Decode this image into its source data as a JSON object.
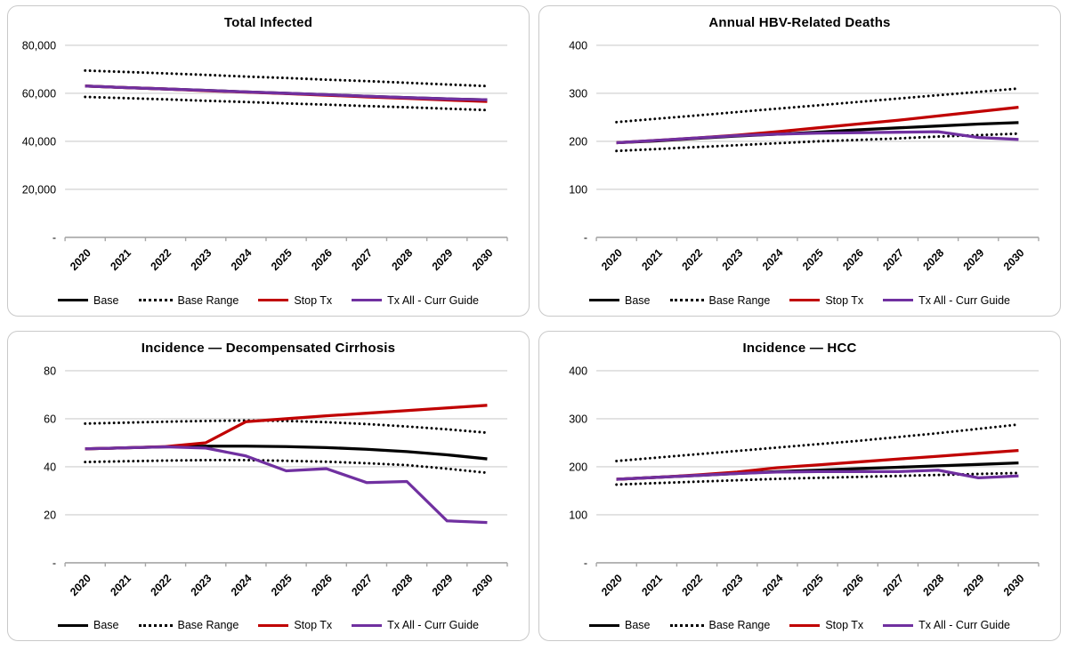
{
  "colors": {
    "base": "#000000",
    "base_range": "#000000",
    "stop_tx": "#C00000",
    "tx_all": "#7030A0",
    "gridline": "#D6D6D6",
    "axis": "#A6A6A6",
    "panel_border": "#C9C9C9",
    "text": "#000000"
  },
  "legend": [
    {
      "label": "Base",
      "style": "solid",
      "color": "#000000"
    },
    {
      "label": "Base Range",
      "style": "dotted",
      "color": "#000000"
    },
    {
      "label": "Stop Tx",
      "style": "solid",
      "color": "#C00000"
    },
    {
      "label": "Tx All - Curr Guide",
      "style": "solid",
      "color": "#7030A0"
    }
  ],
  "chart_data": [
    {
      "type": "line",
      "title": "Total Infected",
      "x": [
        2020,
        2021,
        2022,
        2023,
        2024,
        2025,
        2026,
        2027,
        2028,
        2029,
        2030
      ],
      "ylim": [
        0,
        80000
      ],
      "grid": true,
      "legend_position": "bottom",
      "yticks": [
        {
          "value": 80000,
          "label": "80,000"
        },
        {
          "value": 60000,
          "label": "60,000"
        },
        {
          "value": 40000,
          "label": "40,000"
        },
        {
          "value": 20000,
          "label": "20,000"
        },
        {
          "value": 0,
          "label": "-"
        }
      ],
      "series": [
        {
          "name": "Base",
          "color": "#000000",
          "dash": "solid",
          "values": [
            63000,
            62400,
            61800,
            61200,
            60600,
            60000,
            59400,
            58800,
            58200,
            57700,
            57300
          ]
        },
        {
          "name": "Base Range (upper)",
          "color": "#000000",
          "dash": "dotted",
          "values": [
            69500,
            68900,
            68300,
            67700,
            67000,
            66400,
            65700,
            65100,
            64400,
            63700,
            63000
          ]
        },
        {
          "name": "Base Range (lower)",
          "color": "#000000",
          "dash": "dotted",
          "values": [
            58500,
            58000,
            57500,
            56900,
            56400,
            55800,
            55300,
            54700,
            54200,
            53600,
            53000
          ]
        },
        {
          "name": "Stop Tx",
          "color": "#C00000",
          "dash": "solid",
          "values": [
            63000,
            62400,
            61800,
            61100,
            60500,
            59900,
            59200,
            58500,
            57900,
            57200,
            56600
          ]
        },
        {
          "name": "Tx All - Curr Guide",
          "color": "#7030A0",
          "dash": "solid",
          "values": [
            63000,
            62400,
            61800,
            61200,
            60600,
            60000,
            59400,
            58800,
            58200,
            57700,
            57300
          ]
        }
      ]
    },
    {
      "type": "line",
      "title": "Annual HBV-Related Deaths",
      "x": [
        2020,
        2021,
        2022,
        2023,
        2024,
        2025,
        2026,
        2027,
        2028,
        2029,
        2030
      ],
      "ylim": [
        0,
        400
      ],
      "grid": true,
      "legend_position": "bottom",
      "yticks": [
        {
          "value": 400,
          "label": "400"
        },
        {
          "value": 300,
          "label": "300"
        },
        {
          "value": 200,
          "label": "200"
        },
        {
          "value": 100,
          "label": "100"
        },
        {
          "value": 0,
          "label": "-"
        }
      ],
      "series": [
        {
          "name": "Base",
          "color": "#000000",
          "dash": "solid",
          "values": [
            197,
            201,
            206,
            211,
            215,
            219,
            224,
            228,
            232,
            236,
            239
          ]
        },
        {
          "name": "Base Range (upper)",
          "color": "#000000",
          "dash": "dotted",
          "values": [
            240,
            247,
            254,
            261,
            268,
            275,
            282,
            289,
            296,
            303,
            310
          ]
        },
        {
          "name": "Base Range (lower)",
          "color": "#000000",
          "dash": "dotted",
          "values": [
            180,
            184,
            188,
            192,
            196,
            200,
            203,
            206,
            210,
            213,
            216
          ]
        },
        {
          "name": "Stop Tx",
          "color": "#C00000",
          "dash": "solid",
          "values": [
            197,
            202,
            207,
            213,
            220,
            228,
            236,
            244,
            253,
            262,
            271
          ]
        },
        {
          "name": "Tx All - Curr Guide",
          "color": "#7030A0",
          "dash": "solid",
          "values": [
            197,
            202,
            207,
            212,
            215,
            217,
            218,
            219,
            220,
            208,
            204
          ]
        }
      ]
    },
    {
      "type": "line",
      "title": "Incidence — Decompensated Cirrhosis",
      "x": [
        2020,
        2021,
        2022,
        2023,
        2024,
        2025,
        2026,
        2027,
        2028,
        2029,
        2030
      ],
      "ylim": [
        0,
        80
      ],
      "grid": true,
      "legend_position": "bottom",
      "yticks": [
        {
          "value": 80,
          "label": "80"
        },
        {
          "value": 60,
          "label": "60"
        },
        {
          "value": 40,
          "label": "40"
        },
        {
          "value": 20,
          "label": "20"
        },
        {
          "value": 0,
          "label": "-"
        }
      ],
      "series": [
        {
          "name": "Base",
          "color": "#000000",
          "dash": "solid",
          "values": [
            47.5,
            47.9,
            48.3,
            48.6,
            48.6,
            48.4,
            48.0,
            47.3,
            46.3,
            45.0,
            43.3
          ]
        },
        {
          "name": "Base Range (upper)",
          "color": "#000000",
          "dash": "dotted",
          "values": [
            58.0,
            58.4,
            58.8,
            59.1,
            59.3,
            59.1,
            58.6,
            57.8,
            56.8,
            55.6,
            54.2
          ]
        },
        {
          "name": "Base Range (lower)",
          "color": "#000000",
          "dash": "dotted",
          "values": [
            42.0,
            42.3,
            42.6,
            42.8,
            42.8,
            42.5,
            42.1,
            41.5,
            40.7,
            39.2,
            37.5
          ]
        },
        {
          "name": "Stop Tx",
          "color": "#C00000",
          "dash": "solid",
          "values": [
            47.5,
            47.9,
            48.4,
            50.0,
            58.8,
            60.0,
            61.2,
            62.3,
            63.4,
            64.5,
            65.6
          ]
        },
        {
          "name": "Tx All - Curr Guide",
          "color": "#7030A0",
          "dash": "solid",
          "values": [
            47.5,
            47.9,
            48.3,
            47.8,
            44.5,
            38.3,
            39.2,
            33.4,
            33.9,
            17.5,
            16.8
          ]
        }
      ]
    },
    {
      "type": "line",
      "title": "Incidence — HCC",
      "x": [
        2020,
        2021,
        2022,
        2023,
        2024,
        2025,
        2026,
        2027,
        2028,
        2029,
        2030
      ],
      "ylim": [
        0,
        400
      ],
      "grid": true,
      "legend_position": "bottom",
      "yticks": [
        {
          "value": 400,
          "label": "400"
        },
        {
          "value": 300,
          "label": "300"
        },
        {
          "value": 200,
          "label": "200"
        },
        {
          "value": 100,
          "label": "100"
        },
        {
          "value": 0,
          "label": "-"
        }
      ],
      "series": [
        {
          "name": "Base",
          "color": "#000000",
          "dash": "solid",
          "values": [
            174,
            178,
            182,
            186,
            190,
            193,
            196,
            199,
            202,
            205,
            208
          ]
        },
        {
          "name": "Base Range (upper)",
          "color": "#000000",
          "dash": "dotted",
          "values": [
            212,
            219,
            226,
            233,
            240,
            247,
            254,
            262,
            270,
            279,
            288
          ]
        },
        {
          "name": "Base Range (lower)",
          "color": "#000000",
          "dash": "dotted",
          "values": [
            163,
            166,
            169,
            172,
            175,
            177,
            179,
            181,
            183,
            185,
            187
          ]
        },
        {
          "name": "Stop Tx",
          "color": "#C00000",
          "dash": "solid",
          "values": [
            174,
            178,
            183,
            189,
            198,
            204,
            210,
            216,
            222,
            228,
            234
          ]
        },
        {
          "name": "Tx All - Curr Guide",
          "color": "#7030A0",
          "dash": "solid",
          "values": [
            174,
            178,
            182,
            186,
            189,
            190,
            190,
            190,
            193,
            177,
            181
          ]
        }
      ]
    }
  ]
}
